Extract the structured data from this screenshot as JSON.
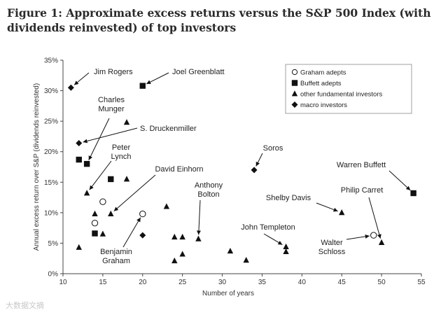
{
  "figure_title": "Figure 1: Approximate excess returns versus the S&P 500 Index (with dividends reinvested) of top investors",
  "watermark": "大数据文摘",
  "colors": {
    "ink": "#111111",
    "axis": "#444444",
    "background": "#ffffff"
  },
  "chart_data": {
    "type": "scatter",
    "title": "Figure 1: Approximate excess returns versus the S&P 500 Index (with dividends reinvested) of top investors",
    "xlabel": "Number of years",
    "ylabel": "Annual excess return over S&P (dividends reinvested)",
    "xlim": [
      10,
      55
    ],
    "ylim": [
      0,
      35
    ],
    "xticks": [
      10,
      15,
      20,
      25,
      30,
      35,
      40,
      45,
      50,
      55
    ],
    "yticks": [
      0,
      5,
      10,
      15,
      20,
      25,
      30,
      35
    ],
    "ytick_labels": [
      "0%",
      "5%",
      "10%",
      "15%",
      "20%",
      "25%",
      "30%",
      "35%"
    ],
    "legend": [
      {
        "name": "Graham adepts",
        "marker": "circle"
      },
      {
        "name": "Buffett adepts",
        "marker": "square"
      },
      {
        "name": "other fundamental investors",
        "marker": "triangle"
      },
      {
        "name": "macro investors",
        "marker": "diamond"
      }
    ],
    "series": [
      {
        "name": "Graham adepts",
        "marker": "circle",
        "points": [
          [
            15,
            11.8
          ],
          [
            14,
            8.3
          ],
          [
            20,
            9.8
          ],
          [
            49,
            6.3
          ]
        ]
      },
      {
        "name": "Buffett adepts",
        "marker": "square",
        "points": [
          [
            20,
            30.8
          ],
          [
            12,
            18.7
          ],
          [
            13,
            18
          ],
          [
            16,
            15.5
          ],
          [
            14,
            6.6
          ],
          [
            54,
            13.2
          ]
        ]
      },
      {
        "name": "other fundamental investors",
        "marker": "triangle",
        "points": [
          [
            18,
            24.8
          ],
          [
            13,
            13.2
          ],
          [
            18,
            15.5
          ],
          [
            16,
            9.8
          ],
          [
            14,
            9.8
          ],
          [
            12,
            4.3
          ],
          [
            15,
            6.5
          ],
          [
            23,
            11
          ],
          [
            24,
            6
          ],
          [
            25,
            6
          ],
          [
            25,
            3.2
          ],
          [
            24,
            2.1
          ],
          [
            27,
            5.7
          ],
          [
            31,
            3.7
          ],
          [
            33,
            2.2
          ],
          [
            38,
            4.4
          ],
          [
            38,
            3.6
          ],
          [
            45,
            10
          ],
          [
            50,
            5.1
          ]
        ]
      },
      {
        "name": "macro investors",
        "marker": "diamond",
        "points": [
          [
            11,
            30.5
          ],
          [
            12,
            21.4
          ],
          [
            20,
            6.3
          ],
          [
            34,
            17
          ]
        ]
      }
    ],
    "annotations": [
      {
        "lines": [
          "Jim Rogers"
        ],
        "point": [
          11,
          30.5
        ]
      },
      {
        "lines": [
          "Joel Greenblatt"
        ],
        "point": [
          20,
          30.8
        ]
      },
      {
        "lines": [
          "Charles",
          "Munger"
        ],
        "point": [
          13,
          18
        ]
      },
      {
        "lines": [
          "S. Druckenmiller"
        ],
        "point": [
          12,
          21.4
        ]
      },
      {
        "lines": [
          "Peter",
          "Lynch"
        ],
        "point": [
          13,
          13.2
        ]
      },
      {
        "lines": [
          "David Einhorn"
        ],
        "point": [
          16,
          9.8
        ]
      },
      {
        "lines": [
          "Anthony",
          "Bolton"
        ],
        "point": [
          27,
          5.7
        ]
      },
      {
        "lines": [
          "Soros"
        ],
        "point": [
          34,
          17
        ]
      },
      {
        "lines": [
          "Warren Buffett"
        ],
        "point": [
          54,
          13.2
        ]
      },
      {
        "lines": [
          "Shelby Davis"
        ],
        "point": [
          45,
          10
        ]
      },
      {
        "lines": [
          "Philip Carret"
        ],
        "point": [
          50,
          5.1
        ]
      },
      {
        "lines": [
          "John Templeton"
        ],
        "point": [
          38,
          4.4
        ]
      },
      {
        "lines": [
          "Walter",
          "Schloss"
        ],
        "point": [
          49,
          6.3
        ]
      },
      {
        "lines": [
          "Benjamin",
          "Graham"
        ],
        "point": [
          20,
          9.8
        ]
      }
    ]
  }
}
